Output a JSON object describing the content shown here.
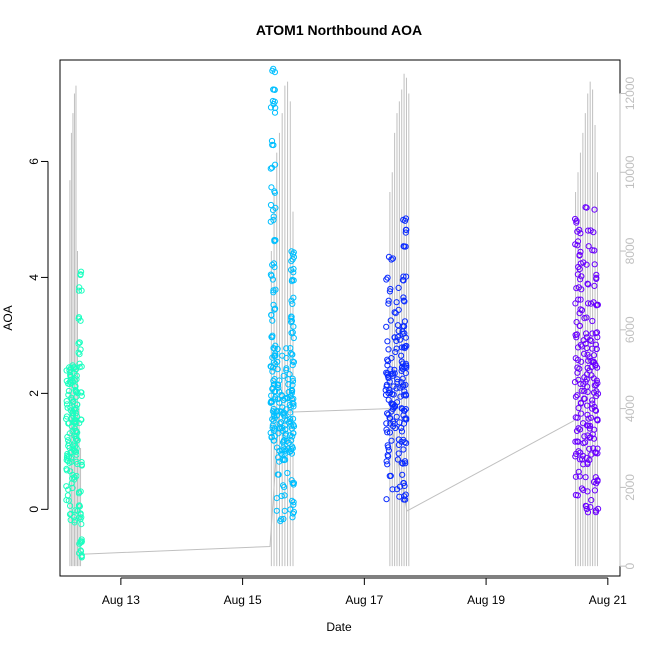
{
  "chart_data": {
    "type": "scatter",
    "title": "ATOM1 Northbound AOA",
    "xlabel": "Date",
    "ylabel": "AOA",
    "x_ticks": [
      "Aug 13",
      "Aug 15",
      "Aug 17",
      "Aug 19",
      "Aug 21"
    ],
    "x_tick_days": [
      13,
      15,
      17,
      19,
      21
    ],
    "xlim_days": [
      12.0,
      21.2
    ],
    "y_ticks": [
      0,
      2,
      4,
      6
    ],
    "ylim": [
      -1.15,
      7.75
    ],
    "right_ticks": [
      0,
      2000,
      4000,
      6000,
      8000,
      10000,
      12000
    ],
    "right_ylim": [
      -250,
      12850
    ],
    "grid": false,
    "series": [
      {
        "color": "#1BFFC0",
        "day_range": [
          12.15,
          12.35
        ],
        "clusters": [
          {
            "day_center": 12.2,
            "day_width": 0.2,
            "values": [
              1.1,
              1.3,
              1.5,
              1.7,
              1.9,
              2.1,
              2.2,
              1.0,
              1.2,
              0.9,
              1.6,
              1.8,
              2.0,
              1.4,
              2.3,
              0.7,
              0.5,
              0.8,
              1.55,
              1.65,
              1.35,
              1.25,
              1.95,
              1.85,
              0.6,
              0.4,
              0.2,
              0.0,
              -0.1,
              -0.2,
              2.4,
              2.5,
              2.45,
              1.75,
              1.45,
              1.15,
              0.95,
              0.85,
              2.15,
              2.25,
              2.35,
              1.05
            ]
          },
          {
            "day_center": 12.33,
            "day_width": 0.06,
            "values": [
              -0.8,
              -0.7,
              -0.6,
              -0.5,
              2.7,
              2.9,
              3.3,
              3.8,
              4.05,
              0.3,
              0.1,
              -0.1,
              -0.2,
              1.5,
              2.0,
              2.5,
              0.8
            ]
          }
        ]
      },
      {
        "color": "#00BFFF",
        "day_range": [
          15.4,
          15.85
        ],
        "clusters": [
          {
            "day_center": 15.5,
            "day_width": 0.08,
            "values": [
              1.4,
              1.6,
              1.8,
              2.0,
              2.2,
              2.4,
              2.6,
              2.8,
              3.0,
              3.3,
              3.5,
              3.8,
              4.0,
              4.2,
              4.6,
              5.0,
              5.2,
              5.5,
              5.9,
              6.3,
              6.9,
              7.0,
              7.2,
              7.6,
              1.5,
              1.7,
              1.9,
              2.1,
              1.3,
              1.2,
              2.5,
              2.7
            ]
          },
          {
            "day_center": 15.7,
            "day_width": 0.28,
            "values": [
              0.8,
              1.0,
              1.1,
              1.2,
              1.3,
              1.4,
              1.5,
              1.6,
              1.7,
              1.8,
              1.9,
              2.0,
              2.1,
              2.2,
              2.3,
              2.4,
              2.6,
              2.8,
              0.6,
              0.4,
              0.2,
              0.0,
              -0.2,
              0.9,
              1.35,
              1.45,
              1.55,
              1.65,
              1.75,
              1.85,
              1.95,
              2.05,
              1.25,
              1.15,
              1.05,
              0.95
            ]
          },
          {
            "day_center": 15.82,
            "day_width": 0.05,
            "values": [
              3.0,
              3.3,
              3.6,
              3.9,
              4.1,
              4.3,
              4.4,
              2.5,
              2.2,
              1.8,
              1.4,
              1.0,
              0.5,
              0.1,
              -0.1,
              2.7,
              3.2
            ]
          }
        ]
      },
      {
        "color": "#0A2BFF",
        "day_range": [
          17.35,
          17.7
        ],
        "clusters": [
          {
            "day_center": 17.52,
            "day_width": 0.34,
            "values": [
              1.0,
              1.2,
              1.4,
              1.6,
              1.8,
              2.0,
              2.2,
              2.4,
              2.6,
              2.8,
              3.0,
              3.2,
              3.4,
              3.6,
              3.8,
              4.0,
              4.3,
              0.9,
              0.8,
              0.6,
              0.4,
              0.2,
              1.5,
              1.7,
              1.9,
              2.1,
              2.3,
              2.5,
              2.7,
              1.3,
              1.1,
              2.9,
              3.1,
              1.45,
              1.65,
              1.85,
              2.05,
              2.25,
              2.45,
              1.55,
              1.75,
              1.95,
              2.15,
              2.35,
              2.55
            ]
          },
          {
            "day_center": 17.66,
            "day_width": 0.06,
            "values": [
              4.5,
              4.8,
              5.0,
              4.0,
              3.6,
              3.2,
              2.8,
              2.4,
              2.0,
              1.6,
              1.2,
              0.8,
              0.4,
              0.2,
              3.0,
              2.2
            ]
          }
        ]
      },
      {
        "color": "#6A00FF",
        "day_range": [
          20.45,
          20.85
        ],
        "clusters": [
          {
            "day_center": 20.52,
            "day_width": 0.12,
            "values": [
              1.2,
              1.6,
              2.0,
              2.4,
              2.8,
              3.2,
              3.6,
              4.0,
              4.4,
              4.8,
              5.0,
              0.9,
              0.6,
              0.3,
              1.8,
              2.2,
              2.6,
              3.0,
              3.4,
              3.8,
              4.2,
              1.4,
              1.0,
              4.6
            ]
          },
          {
            "day_center": 20.7,
            "day_width": 0.22,
            "values": [
              0.8,
              1.0,
              1.2,
              1.4,
              1.6,
              1.8,
              2.0,
              2.2,
              2.4,
              2.6,
              2.8,
              3.0,
              3.3,
              3.6,
              3.9,
              4.2,
              4.5,
              4.8,
              5.2,
              0.5,
              0.3,
              0.1,
              1.5,
              1.7,
              1.9,
              2.1,
              2.3,
              2.5,
              2.7,
              2.9,
              1.3,
              1.1,
              0.9,
              0.0
            ]
          },
          {
            "day_center": 20.82,
            "day_width": 0.05,
            "values": [
              2.0,
              2.5,
              3.0,
              3.5,
              4.0,
              1.5,
              1.0,
              0.5,
              0.0,
              2.2,
              2.8
            ]
          }
        ]
      }
    ],
    "secondary_series": {
      "color": "#C0C0C0",
      "type": "line",
      "bursts": [
        {
          "day_range": [
            12.15,
            12.35
          ],
          "spikes": [
            9800,
            11000,
            11500,
            12000,
            12200,
            8000,
            4000,
            3000
          ]
        },
        {
          "day_range": [
            15.45,
            15.85
          ],
          "spikes": [
            8000,
            9500,
            10500,
            11000,
            11500,
            12200,
            12300,
            11800,
            9000
          ]
        },
        {
          "day_range": [
            17.4,
            17.75
          ],
          "spikes": [
            9500,
            10000,
            11000,
            11500,
            11800,
            12100,
            12500,
            12400,
            12000
          ]
        },
        {
          "day_range": [
            20.45,
            20.85
          ],
          "spikes": [
            9500,
            10000,
            10500,
            11000,
            11500,
            12000,
            12300,
            12100,
            11200,
            10000
          ]
        }
      ],
      "baseline_points": [
        {
          "day": 12.3,
          "value": 300
        },
        {
          "day": 15.45,
          "value": 500
        },
        {
          "day": 15.6,
          "value": 3900
        },
        {
          "day": 17.4,
          "value": 4000
        },
        {
          "day": 17.7,
          "value": 1400
        },
        {
          "day": 20.45,
          "value": 3700
        }
      ]
    }
  }
}
